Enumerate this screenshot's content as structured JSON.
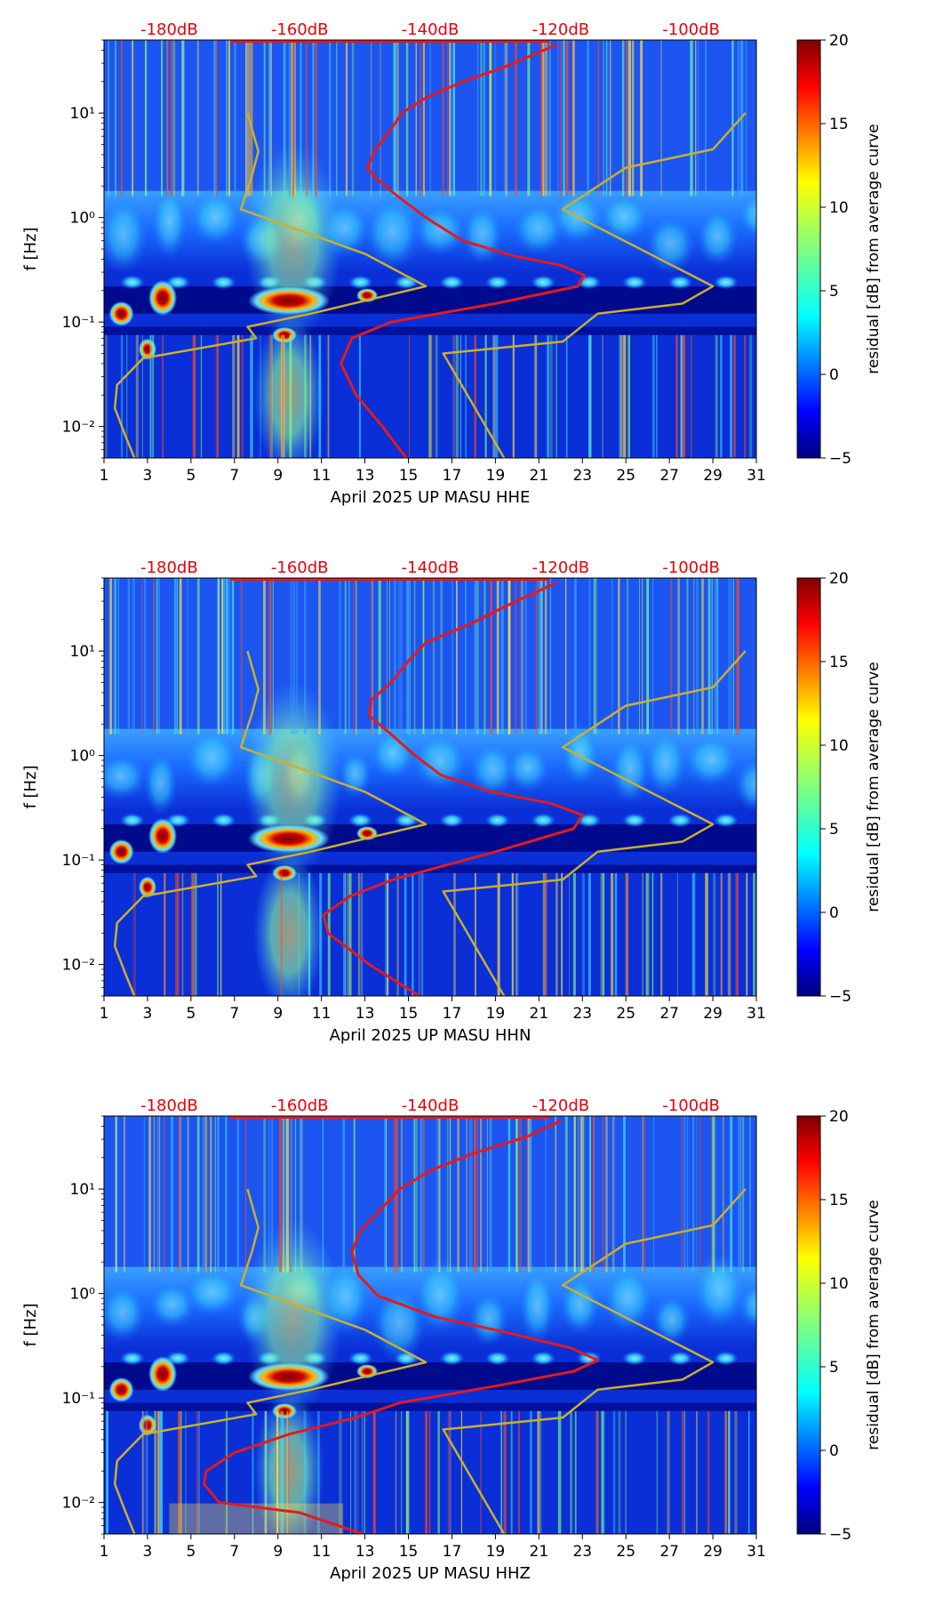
{
  "figure": {
    "y_axis_label": "f [Hz]",
    "colorbar_label": "residual [dB] from average curve",
    "colorbar_ticks": [
      "20",
      "15",
      "10",
      "5",
      "0",
      "−5"
    ],
    "colorbar_range": [
      -5,
      20
    ],
    "x_ticks": [
      "1",
      "3",
      "5",
      "7",
      "9",
      "11",
      "13",
      "15",
      "17",
      "19",
      "21",
      "23",
      "25",
      "27",
      "29",
      "31"
    ],
    "y_ticks": [
      "10⁻²",
      "10⁻¹",
      "10⁰",
      "10¹"
    ],
    "y_tick_values": [
      0.01,
      0.1,
      1,
      10
    ],
    "db_scale_labels": [
      "-180dB",
      "-160dB",
      "-140dB",
      "-120dB",
      "-100dB"
    ],
    "db_scale_positions": [
      4,
      10,
      16,
      22,
      28
    ],
    "colors": {
      "red_curve": "#e41a1c",
      "model_curve": "#c8b030",
      "db_label": "#e8000b"
    }
  },
  "chart_data": [
    {
      "type": "heatmap",
      "title": "",
      "xlabel": "April 2025 UP MASU  HHE",
      "ylabel": "f [Hz]",
      "xlim": [
        1,
        31
      ],
      "ylim": [
        0.005,
        50
      ],
      "y_scale": "log",
      "colorbar": {
        "label": "residual [dB] from average curve",
        "range": [
          -5,
          20
        ]
      },
      "series": [
        {
          "name": "average PSD curve (red)",
          "points": [
            [
              14.9,
              0.005
            ],
            [
              13.8,
              0.01
            ],
            [
              12.6,
              0.02
            ],
            [
              11.9,
              0.04
            ],
            [
              12.4,
              0.07
            ],
            [
              14.2,
              0.1
            ],
            [
              19.0,
              0.15
            ],
            [
              22.8,
              0.22
            ],
            [
              23.1,
              0.28
            ],
            [
              22.0,
              0.35
            ],
            [
              19.8,
              0.43
            ],
            [
              17.5,
              0.6
            ],
            [
              15.8,
              1.0
            ],
            [
              14.5,
              1.6
            ],
            [
              13.5,
              2.4
            ],
            [
              13.1,
              3.0
            ],
            [
              13.5,
              4.5
            ],
            [
              14.1,
              6.5
            ],
            [
              14.7,
              10
            ],
            [
              15.8,
              14
            ],
            [
              17.5,
              20
            ],
            [
              19.5,
              28
            ],
            [
              21.8,
              45
            ]
          ]
        },
        {
          "name": "noise model low (gold)",
          "points": [
            [
              2.4,
              0.005
            ],
            [
              2.0,
              0.008
            ],
            [
              1.5,
              0.015
            ],
            [
              1.6,
              0.025
            ],
            [
              2.8,
              0.045
            ],
            [
              8.0,
              0.07
            ],
            [
              7.6,
              0.09
            ],
            [
              10.5,
              0.12
            ],
            [
              15.8,
              0.22
            ],
            [
              13.0,
              0.45
            ],
            [
              7.3,
              1.2
            ],
            [
              7.8,
              2.5
            ],
            [
              8.1,
              4.3
            ],
            [
              7.6,
              10
            ]
          ]
        },
        {
          "name": "noise model high (gold)",
          "points": [
            [
              19.4,
              0.005
            ],
            [
              16.6,
              0.05
            ],
            [
              22.1,
              0.065
            ],
            [
              23.7,
              0.12
            ],
            [
              27.6,
              0.15
            ],
            [
              29.0,
              0.22
            ],
            [
              22.1,
              1.2
            ],
            [
              25.0,
              3.0
            ],
            [
              29.0,
              4.5
            ],
            [
              30.5,
              10
            ]
          ]
        }
      ]
    },
    {
      "type": "heatmap",
      "title": "",
      "xlabel": "April 2025 UP MASU  HHN",
      "ylabel": "f [Hz]",
      "xlim": [
        1,
        31
      ],
      "ylim": [
        0.005,
        50
      ],
      "y_scale": "log",
      "colorbar": {
        "label": "residual [dB] from average curve",
        "range": [
          -5,
          20
        ]
      },
      "series": [
        {
          "name": "average PSD curve (red)",
          "points": [
            [
              15.5,
              0.005
            ],
            [
              13.2,
              0.01
            ],
            [
              11.3,
              0.02
            ],
            [
              11.1,
              0.03
            ],
            [
              12.3,
              0.045
            ],
            [
              14.3,
              0.065
            ],
            [
              19.0,
              0.12
            ],
            [
              22.6,
              0.2
            ],
            [
              23.0,
              0.27
            ],
            [
              21.5,
              0.35
            ],
            [
              18.8,
              0.45
            ],
            [
              16.5,
              0.65
            ],
            [
              15.3,
              1.0
            ],
            [
              14.2,
              1.6
            ],
            [
              13.2,
              2.4
            ],
            [
              13.3,
              3.4
            ],
            [
              14.2,
              5.0
            ],
            [
              15.0,
              8.0
            ],
            [
              15.8,
              12
            ],
            [
              17.8,
              18
            ],
            [
              19.5,
              27
            ],
            [
              21.8,
              45
            ]
          ]
        },
        {
          "name": "noise model low (gold)",
          "points": [
            [
              2.4,
              0.005
            ],
            [
              2.0,
              0.008
            ],
            [
              1.5,
              0.015
            ],
            [
              1.6,
              0.025
            ],
            [
              2.8,
              0.045
            ],
            [
              8.0,
              0.07
            ],
            [
              7.6,
              0.09
            ],
            [
              10.5,
              0.12
            ],
            [
              15.8,
              0.22
            ],
            [
              13.0,
              0.45
            ],
            [
              7.3,
              1.2
            ],
            [
              7.8,
              2.5
            ],
            [
              8.1,
              4.3
            ],
            [
              7.6,
              10
            ]
          ]
        },
        {
          "name": "noise model high (gold)",
          "points": [
            [
              19.4,
              0.005
            ],
            [
              16.6,
              0.05
            ],
            [
              22.1,
              0.065
            ],
            [
              23.7,
              0.12
            ],
            [
              27.6,
              0.15
            ],
            [
              29.0,
              0.22
            ],
            [
              22.1,
              1.2
            ],
            [
              25.0,
              3.0
            ],
            [
              29.0,
              4.5
            ],
            [
              30.5,
              10
            ]
          ]
        }
      ]
    },
    {
      "type": "heatmap",
      "title": "",
      "xlabel": "April 2025 UP MASU  HHZ",
      "ylabel": "f [Hz]",
      "xlim": [
        1,
        31
      ],
      "ylim": [
        0.005,
        50
      ],
      "y_scale": "log",
      "colorbar": {
        "label": "residual [dB] from average curve",
        "range": [
          -5,
          20
        ]
      },
      "series": [
        {
          "name": "average PSD curve (red)",
          "points": [
            [
              12.9,
              0.005
            ],
            [
              10.0,
              0.008
            ],
            [
              6.3,
              0.01
            ],
            [
              5.6,
              0.015
            ],
            [
              5.7,
              0.02
            ],
            [
              7.0,
              0.03
            ],
            [
              9.5,
              0.045
            ],
            [
              12.6,
              0.065
            ],
            [
              14.6,
              0.09
            ],
            [
              19.0,
              0.13
            ],
            [
              22.6,
              0.18
            ],
            [
              23.7,
              0.23
            ],
            [
              22.5,
              0.3
            ],
            [
              19.6,
              0.42
            ],
            [
              16.2,
              0.6
            ],
            [
              13.6,
              0.95
            ],
            [
              12.7,
              1.5
            ],
            [
              12.4,
              2.5
            ],
            [
              12.8,
              4.0
            ],
            [
              13.6,
              6.0
            ],
            [
              14.6,
              10
            ],
            [
              16.0,
              15
            ],
            [
              18.0,
              22
            ],
            [
              20.5,
              32
            ],
            [
              22.0,
              45
            ]
          ]
        },
        {
          "name": "noise model low (gold)",
          "points": [
            [
              2.4,
              0.005
            ],
            [
              2.0,
              0.008
            ],
            [
              1.5,
              0.015
            ],
            [
              1.6,
              0.025
            ],
            [
              2.8,
              0.045
            ],
            [
              8.0,
              0.07
            ],
            [
              7.6,
              0.09
            ],
            [
              10.5,
              0.12
            ],
            [
              15.8,
              0.22
            ],
            [
              13.0,
              0.45
            ],
            [
              7.3,
              1.2
            ],
            [
              7.8,
              2.5
            ],
            [
              8.1,
              4.3
            ],
            [
              7.6,
              10
            ]
          ]
        },
        {
          "name": "noise model high (gold)",
          "points": [
            [
              19.4,
              0.005
            ],
            [
              16.6,
              0.05
            ],
            [
              22.1,
              0.065
            ],
            [
              23.7,
              0.12
            ],
            [
              27.6,
              0.15
            ],
            [
              29.0,
              0.22
            ],
            [
              22.1,
              1.2
            ],
            [
              25.0,
              3.0
            ],
            [
              29.0,
              4.5
            ],
            [
              30.5,
              10
            ]
          ]
        }
      ]
    }
  ]
}
